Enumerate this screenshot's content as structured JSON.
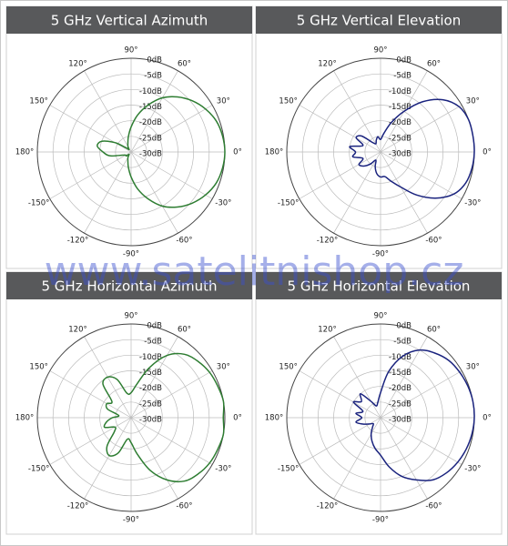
{
  "watermark": "www.satelitnishop.cz",
  "chart_data": [
    {
      "type": "polar",
      "title": "5 GHz Vertical Azimuth",
      "theta": [
        -180,
        -170,
        -160,
        -150,
        -140,
        -130,
        -120,
        -110,
        -100,
        -90,
        -80,
        -70,
        -60,
        -50,
        -40,
        -30,
        -20,
        -10,
        0,
        10,
        20,
        30,
        40,
        50,
        60,
        70,
        80,
        90,
        100,
        110,
        120,
        130,
        140,
        150,
        160,
        170
      ],
      "series": [
        {
          "color": "#2e7d32",
          "values": [
            -21,
            -23,
            -27,
            -28,
            -28,
            -29,
            -28,
            -27,
            -25,
            -22,
            -18,
            -14,
            -10,
            -7,
            -4.5,
            -2.5,
            -1,
            -0.3,
            0,
            -0.3,
            -1,
            -2.5,
            -4.5,
            -7,
            -10,
            -14,
            -18,
            -22,
            -25,
            -27,
            -28,
            -29,
            -28,
            -24,
            -20,
            -19
          ]
        }
      ],
      "rlim": [
        -30,
        0
      ],
      "rticks": [
        {
          "value": 0,
          "label": "0dB"
        },
        {
          "value": -5,
          "label": "-5dB"
        },
        {
          "value": -10,
          "label": "-10dB"
        },
        {
          "value": -15,
          "label": "-15dB"
        },
        {
          "value": -20,
          "label": "-20dB"
        },
        {
          "value": -25,
          "label": "-25dB"
        },
        {
          "value": -30,
          "label": "-30dB"
        }
      ],
      "thetaticks": [
        {
          "value": 90,
          "label": "90°"
        },
        {
          "value": 60,
          "label": "60°"
        },
        {
          "value": 30,
          "label": "30°"
        },
        {
          "value": 0,
          "label": "0°"
        },
        {
          "value": -30,
          "label": "-30°"
        },
        {
          "value": -60,
          "label": "-60°"
        },
        {
          "value": -90,
          "label": "-90°"
        },
        {
          "value": -120,
          "label": "-120°"
        },
        {
          "value": -150,
          "label": "-150°"
        },
        {
          "value": 180,
          "label": "180°"
        },
        {
          "value": 150,
          "label": "150°"
        },
        {
          "value": 120,
          "label": "120°"
        }
      ]
    },
    {
      "type": "polar",
      "title": "5 GHz Vertical Elevation",
      "theta": [
        -180,
        -170,
        -160,
        -150,
        -140,
        -130,
        -120,
        -110,
        -100,
        -90,
        -80,
        -70,
        -60,
        -50,
        -40,
        -30,
        -20,
        -10,
        0,
        10,
        20,
        30,
        40,
        50,
        60,
        70,
        80,
        90,
        100,
        110,
        120,
        130,
        140,
        150,
        160,
        170
      ],
      "series": [
        {
          "color": "#1a237e",
          "values": [
            -22,
            -21,
            -24,
            -22,
            -23,
            -25,
            -27,
            -25,
            -23,
            -22,
            -22,
            -20,
            -17,
            -12,
            -7,
            -3,
            -1,
            -0.3,
            0,
            0,
            0,
            -1,
            -4,
            -9,
            -15,
            -20,
            -24,
            -26,
            -25,
            -26,
            -27,
            -26,
            -22,
            -21,
            -24,
            -20
          ]
        }
      ],
      "rlim": [
        -30,
        0
      ],
      "rticks": [
        {
          "value": 0,
          "label": "0dB"
        },
        {
          "value": -5,
          "label": "-5dB"
        },
        {
          "value": -10,
          "label": "-10dB"
        },
        {
          "value": -15,
          "label": "-15dB"
        },
        {
          "value": -20,
          "label": "-20dB"
        },
        {
          "value": -25,
          "label": "-25dB"
        },
        {
          "value": -30,
          "label": "-30dB"
        }
      ],
      "thetaticks": [
        {
          "value": 90,
          "label": "90°"
        },
        {
          "value": 60,
          "label": "60°"
        },
        {
          "value": 30,
          "label": "30°"
        },
        {
          "value": 0,
          "label": "0°"
        },
        {
          "value": -30,
          "label": "-30°"
        },
        {
          "value": -60,
          "label": "-60°"
        },
        {
          "value": -90,
          "label": "-90°"
        },
        {
          "value": -120,
          "label": "-120°"
        },
        {
          "value": -150,
          "label": "-150°"
        },
        {
          "value": 180,
          "label": "180°"
        },
        {
          "value": 150,
          "label": "150°"
        },
        {
          "value": 120,
          "label": "120°"
        }
      ]
    },
    {
      "type": "polar",
      "title": "5 GHz Horizontal Azimuth",
      "theta": [
        -180,
        -170,
        -160,
        -150,
        -140,
        -130,
        -120,
        -110,
        -100,
        -90,
        -80,
        -70,
        -60,
        -50,
        -40,
        -30,
        -20,
        -10,
        0,
        10,
        20,
        30,
        40,
        50,
        60,
        70,
        80,
        90,
        100,
        110,
        120,
        130,
        140,
        150,
        160,
        170
      ],
      "series": [
        {
          "color": "#2e7d32",
          "values": [
            -24,
            -22,
            -21,
            -24,
            -23,
            -18,
            -16,
            -18,
            -23,
            -22,
            -18,
            -12,
            -7,
            -3.5,
            -2,
            -1,
            -0.5,
            0,
            -0.5,
            0,
            -0.5,
            -1,
            -2,
            -3.5,
            -7,
            -13,
            -19,
            -22,
            -22,
            -17,
            -15,
            -16,
            -22,
            -21,
            -22,
            -26
          ]
        }
      ],
      "rlim": [
        -30,
        0
      ],
      "rticks": [
        {
          "value": 0,
          "label": "0dB"
        },
        {
          "value": -5,
          "label": "-5dB"
        },
        {
          "value": -10,
          "label": "-10dB"
        },
        {
          "value": -15,
          "label": "-15dB"
        },
        {
          "value": -20,
          "label": "-20dB"
        },
        {
          "value": -25,
          "label": "-25dB"
        },
        {
          "value": -30,
          "label": "-30dB"
        }
      ],
      "thetaticks": [
        {
          "value": 90,
          "label": "90°"
        },
        {
          "value": 60,
          "label": "60°"
        },
        {
          "value": 30,
          "label": "30°"
        },
        {
          "value": 0,
          "label": "0°"
        },
        {
          "value": -30,
          "label": "-30°"
        },
        {
          "value": -60,
          "label": "-60°"
        },
        {
          "value": -90,
          "label": "-90°"
        },
        {
          "value": -120,
          "label": "-120°"
        },
        {
          "value": -150,
          "label": "-150°"
        },
        {
          "value": 180,
          "label": "180°"
        },
        {
          "value": 150,
          "label": "150°"
        },
        {
          "value": 120,
          "label": "120°"
        }
      ]
    },
    {
      "type": "polar",
      "title": "5 GHz Horizontal Elevation",
      "theta": [
        -180,
        -170,
        -160,
        -150,
        -140,
        -130,
        -120,
        -110,
        -100,
        -90,
        -80,
        -70,
        -60,
        -50,
        -40,
        -30,
        -20,
        -10,
        0,
        10,
        20,
        30,
        40,
        50,
        60,
        70,
        80,
        90,
        100,
        110,
        120,
        130,
        140,
        150,
        160,
        170
      ],
      "series": [
        {
          "color": "#1a237e",
          "values": [
            -24,
            -22,
            -24,
            -26,
            -27,
            -26,
            -24,
            -22,
            -20,
            -18,
            -14,
            -10,
            -7,
            -4,
            -2.5,
            -1.5,
            -0.8,
            -0.3,
            0,
            0,
            -0.3,
            -0.8,
            -1.5,
            -3,
            -5,
            -9,
            -15,
            -22,
            -25,
            -26,
            -24,
            -20,
            -22,
            -20,
            -24,
            -22
          ]
        }
      ],
      "rlim": [
        -30,
        0
      ],
      "rticks": [
        {
          "value": 0,
          "label": "0dB"
        },
        {
          "value": -5,
          "label": "-5dB"
        },
        {
          "value": -10,
          "label": "-10dB"
        },
        {
          "value": -15,
          "label": "-15dB"
        },
        {
          "value": -20,
          "label": "-20dB"
        },
        {
          "value": -25,
          "label": "-25dB"
        },
        {
          "value": -30,
          "label": "-30dB"
        }
      ],
      "thetaticks": [
        {
          "value": 90,
          "label": "90°"
        },
        {
          "value": 60,
          "label": "60°"
        },
        {
          "value": 30,
          "label": "30°"
        },
        {
          "value": 0,
          "label": "0°"
        },
        {
          "value": -30,
          "label": "-30°"
        },
        {
          "value": -60,
          "label": "-60°"
        },
        {
          "value": -90,
          "label": "-90°"
        },
        {
          "value": -120,
          "label": "-120°"
        },
        {
          "value": -150,
          "label": "-150°"
        },
        {
          "value": 180,
          "label": "180°"
        },
        {
          "value": 150,
          "label": "150°"
        },
        {
          "value": 120,
          "label": "120°"
        }
      ]
    }
  ]
}
